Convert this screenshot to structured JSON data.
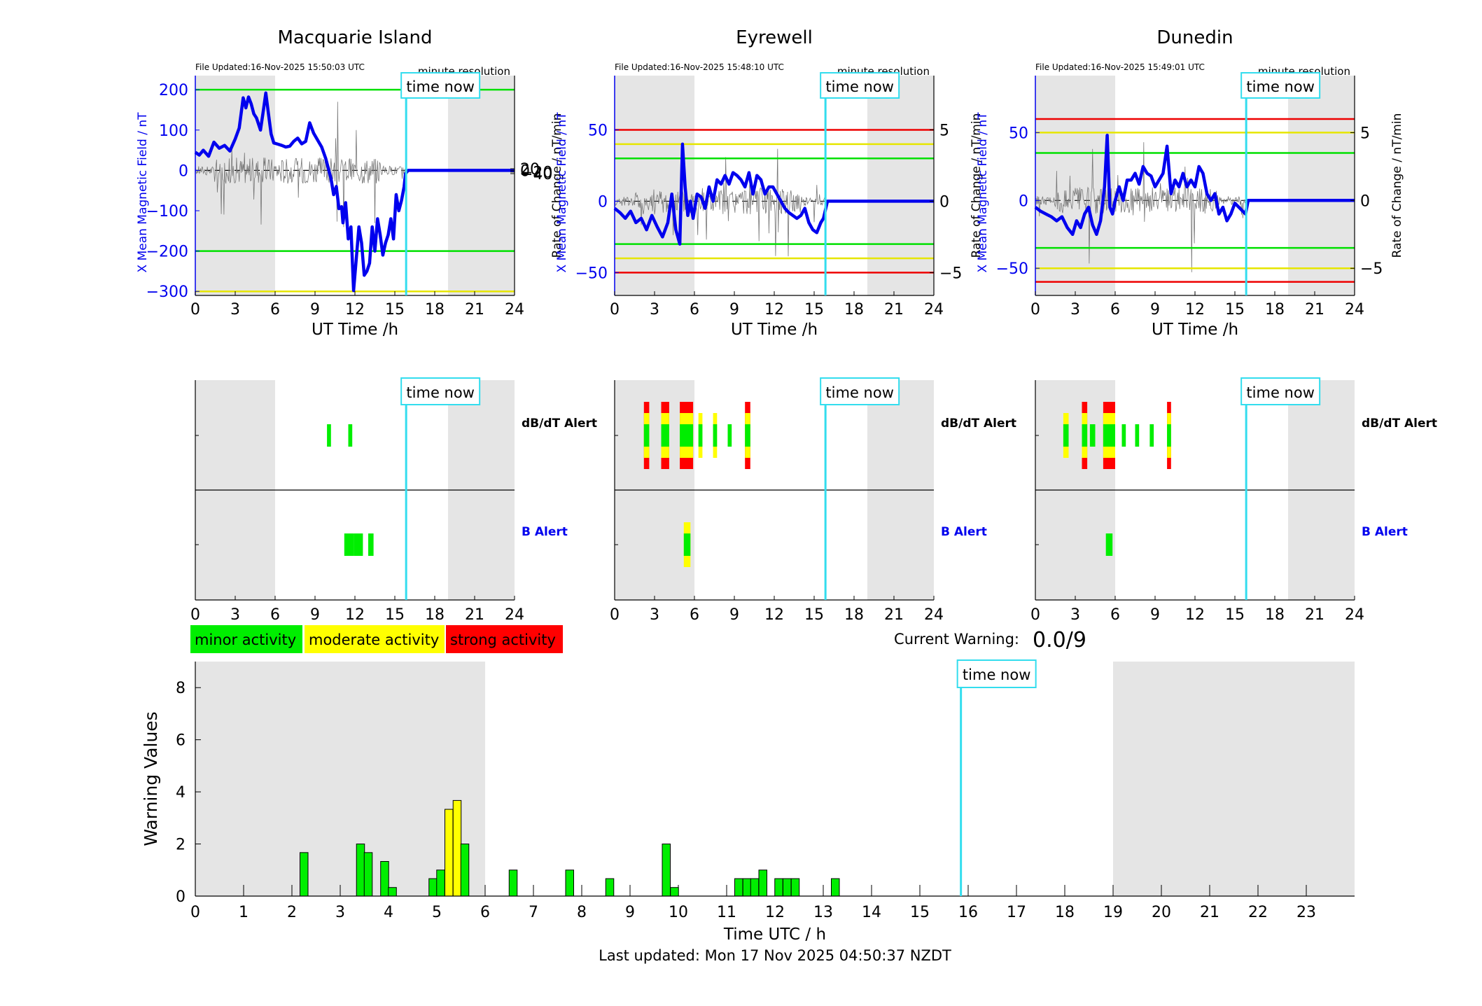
{
  "stations": [
    {
      "name": "Macquarie Island",
      "file_updated": "File Updated:16-Nov-2025 15:50:03 UTC",
      "resolution": "minute resolution",
      "left_ylabel": "X Mean Magnetic Field / nT",
      "right_ylabel": "Rate of Change / nT/min",
      "xlabel": "UT Time /h",
      "left_ylim": [
        -310,
        235
      ],
      "left_yticks": [
        -300,
        -200,
        -100,
        0,
        100,
        200
      ],
      "right_yticks": [
        -40,
        -20,
        0,
        20
      ],
      "right_scale": 5,
      "thresholds": [
        {
          "value": 200,
          "color": "#00e000"
        },
        {
          "value": -200,
          "color": "#00e000"
        },
        {
          "value": -300,
          "color": "#e6e600"
        }
      ],
      "b_series": {
        "t": [
          0,
          0.3,
          0.6,
          1,
          1.4,
          1.8,
          2.2,
          2.6,
          3,
          3.3,
          3.6,
          3.8,
          4,
          4.2,
          4.4,
          4.6,
          4.9,
          5.1,
          5.3,
          5.5,
          5.7,
          5.9,
          6.2,
          6.5,
          6.8,
          7.1,
          7.4,
          7.7,
          8,
          8.3,
          8.6,
          8.9,
          9.2,
          9.5,
          9.8,
          10,
          10.2,
          10.4,
          10.6,
          10.8,
          11,
          11.1,
          11.3,
          11.5,
          11.7,
          11.9,
          12.1,
          12.3,
          12.5,
          12.7,
          12.9,
          13.1,
          13.3,
          13.5,
          13.7,
          13.9,
          14.1,
          14.3,
          14.5,
          14.7,
          14.9,
          15.1,
          15.3,
          15.5,
          15.7,
          15.8,
          16,
          24
        ],
        "v": [
          45,
          38,
          50,
          35,
          70,
          55,
          62,
          48,
          78,
          105,
          180,
          155,
          182,
          165,
          140,
          130,
          100,
          145,
          192,
          140,
          90,
          68,
          65,
          62,
          58,
          60,
          72,
          80,
          66,
          72,
          118,
          92,
          75,
          58,
          30,
          5,
          -20,
          -60,
          -40,
          -95,
          -90,
          -130,
          -80,
          -170,
          -140,
          -298,
          -220,
          -140,
          -180,
          -260,
          -250,
          -230,
          -140,
          -200,
          -120,
          -160,
          -210,
          -180,
          -160,
          -120,
          -170,
          -60,
          -100,
          -75,
          -40,
          -8,
          0,
          0
        ]
      },
      "d_series_amp": 6,
      "dbdt_alerts": [
        {
          "start": 9.9,
          "end": 10.2,
          "level": "minor"
        },
        {
          "start": 11.5,
          "end": 11.8,
          "level": "minor"
        }
      ],
      "b_alerts": [
        {
          "start": 11.2,
          "end": 11.9,
          "level": "minor"
        },
        {
          "start": 11.9,
          "end": 12.6,
          "level": "minor"
        },
        {
          "start": 13.0,
          "end": 13.4,
          "level": "minor"
        }
      ]
    },
    {
      "name": "Eyrewell",
      "file_updated": "File Updated:16-Nov-2025 15:48:10 UTC",
      "resolution": "minute resolution",
      "left_ylabel": "X Mean Magnetic Field / nT",
      "right_ylabel": "Rate of Change / nT/min",
      "xlabel": "UT Time /h",
      "left_ylim": [
        -66,
        88
      ],
      "left_yticks": [
        -50,
        0,
        50
      ],
      "right_yticks": [
        -5,
        0,
        5
      ],
      "right_scale": 0.1,
      "thresholds": [
        {
          "value": 50,
          "color": "#ee0000"
        },
        {
          "value": 40,
          "color": "#e6e600"
        },
        {
          "value": 30,
          "color": "#00e000"
        },
        {
          "value": -30,
          "color": "#00e000"
        },
        {
          "value": -40,
          "color": "#e6e600"
        },
        {
          "value": -50,
          "color": "#ee0000"
        }
      ],
      "b_series": {
        "t": [
          0,
          0.4,
          0.8,
          1.2,
          1.6,
          2,
          2.4,
          2.8,
          3.2,
          3.6,
          4,
          4.3,
          4.6,
          4.9,
          5.1,
          5.3,
          5.5,
          5.7,
          5.9,
          6.2,
          6.5,
          6.8,
          7.1,
          7.4,
          7.7,
          8,
          8.3,
          8.6,
          8.9,
          9.2,
          9.5,
          9.8,
          10.1,
          10.4,
          10.7,
          11,
          11.3,
          11.6,
          11.9,
          12.2,
          12.5,
          12.8,
          13.1,
          13.4,
          13.7,
          14,
          14.3,
          14.6,
          14.9,
          15.2,
          15.5,
          15.7,
          15.8,
          16,
          24
        ],
        "v": [
          -5,
          -8,
          -12,
          -7,
          -15,
          -12,
          -20,
          -10,
          -18,
          -25,
          -15,
          5,
          -20,
          -30,
          40,
          10,
          -10,
          0,
          -12,
          5,
          3,
          -5,
          10,
          0,
          15,
          12,
          18,
          12,
          20,
          18,
          15,
          10,
          20,
          5,
          18,
          15,
          5,
          10,
          10,
          5,
          0,
          -5,
          -8,
          -10,
          -12,
          -10,
          -5,
          -15,
          -20,
          -22,
          -15,
          -12,
          -8,
          0,
          0
        ]
      },
      "d_series_amp": 4,
      "dbdt_alerts": [
        {
          "start": 2.2,
          "end": 2.6,
          "level": "strong"
        },
        {
          "start": 3.5,
          "end": 4.1,
          "level": "strong"
        },
        {
          "start": 4.9,
          "end": 5.9,
          "level": "strong"
        },
        {
          "start": 6.3,
          "end": 6.6,
          "level": "moderate"
        },
        {
          "start": 7.4,
          "end": 7.7,
          "level": "moderate"
        },
        {
          "start": 8.5,
          "end": 8.8,
          "level": "minor"
        },
        {
          "start": 9.8,
          "end": 10.2,
          "level": "strong"
        }
      ],
      "b_alerts": [
        {
          "start": 5.2,
          "end": 5.7,
          "level": "moderate"
        }
      ]
    },
    {
      "name": "Dunedin",
      "file_updated": "File Updated:16-Nov-2025 15:49:01 UTC",
      "resolution": "minute resolution",
      "left_ylabel": "X Mean Magnetic Field / nT",
      "right_ylabel": "Rate of Change / nT/min",
      "xlabel": "UT Time /h",
      "left_ylim": [
        -70,
        92
      ],
      "left_yticks": [
        -50,
        0,
        50
      ],
      "right_yticks": [
        -5,
        0,
        5
      ],
      "right_scale": 0.1,
      "thresholds": [
        {
          "value": 60,
          "color": "#ee0000"
        },
        {
          "value": 50,
          "color": "#e6e600"
        },
        {
          "value": 35,
          "color": "#00e000"
        },
        {
          "value": -35,
          "color": "#00e000"
        },
        {
          "value": -50,
          "color": "#e6e600"
        },
        {
          "value": -60,
          "color": "#ee0000"
        }
      ],
      "b_series": {
        "t": [
          0,
          0.4,
          0.8,
          1.2,
          1.6,
          2,
          2.4,
          2.8,
          3.1,
          3.4,
          3.7,
          4,
          4.3,
          4.6,
          4.9,
          5.2,
          5.4,
          5.6,
          5.8,
          6,
          6.3,
          6.6,
          6.9,
          7.2,
          7.5,
          7.8,
          8.1,
          8.4,
          8.7,
          9,
          9.3,
          9.6,
          9.9,
          10.2,
          10.5,
          10.8,
          11.1,
          11.4,
          11.7,
          12,
          12.3,
          12.6,
          12.9,
          13.2,
          13.5,
          13.8,
          14.1,
          14.4,
          14.7,
          15,
          15.3,
          15.6,
          15.8,
          16,
          24
        ],
        "v": [
          -5,
          -8,
          -10,
          -12,
          -15,
          -12,
          -20,
          -25,
          -15,
          -20,
          -10,
          -5,
          -18,
          -25,
          -15,
          10,
          48,
          -5,
          -10,
          0,
          10,
          0,
          15,
          15,
          20,
          12,
          25,
          20,
          18,
          10,
          15,
          20,
          40,
          5,
          15,
          10,
          20,
          10,
          15,
          10,
          25,
          20,
          5,
          0,
          5,
          -10,
          -5,
          -15,
          -10,
          -2,
          -5,
          -8,
          -10,
          0,
          0
        ]
      },
      "d_series_amp": 4,
      "dbdt_alerts": [
        {
          "start": 2.1,
          "end": 2.5,
          "level": "moderate"
        },
        {
          "start": 3.5,
          "end": 3.9,
          "level": "strong"
        },
        {
          "start": 4.1,
          "end": 4.5,
          "level": "minor"
        },
        {
          "start": 5.1,
          "end": 6.0,
          "level": "strong"
        },
        {
          "start": 6.5,
          "end": 6.8,
          "level": "minor"
        },
        {
          "start": 7.5,
          "end": 7.8,
          "level": "minor"
        },
        {
          "start": 8.6,
          "end": 8.9,
          "level": "minor"
        },
        {
          "start": 9.9,
          "end": 10.2,
          "level": "strong"
        }
      ],
      "b_alerts": [
        {
          "start": 5.3,
          "end": 5.8,
          "level": "minor"
        }
      ]
    }
  ],
  "alert_labels": {
    "dbdt": "dB/dT Alert",
    "b": "B Alert"
  },
  "time_now_label": "time now",
  "time_now_hour": 15.85,
  "night_shading": [
    [
      0,
      6
    ],
    [
      19,
      24
    ]
  ],
  "x_ticks_station": [
    0,
    3,
    6,
    9,
    12,
    15,
    18,
    21,
    24
  ],
  "legend": [
    {
      "label": "minor activity",
      "color": "#00ee00"
    },
    {
      "label": "moderate activity",
      "color": "#ffff00"
    },
    {
      "label": "strong activity",
      "color": "#ff0000"
    }
  ],
  "level_colors": {
    "minor": "#00ee00",
    "moderate": "#ffff00",
    "strong": "#ff0000"
  },
  "current_warning": {
    "label": "Current Warning:",
    "value": "0.0/9"
  },
  "chart_data": {
    "type": "bar",
    "title": "",
    "xlabel": "Time UTC / h",
    "ylabel": "Warning Values",
    "xlim": [
      0,
      24
    ],
    "ylim": [
      0,
      9
    ],
    "x_ticks": [
      0,
      1,
      2,
      3,
      4,
      5,
      6,
      7,
      8,
      9,
      10,
      11,
      12,
      13,
      14,
      15,
      16,
      17,
      18,
      19,
      20,
      21,
      22,
      23
    ],
    "y_ticks": [
      0,
      2,
      4,
      6,
      8
    ],
    "bars": [
      {
        "x": 2.25,
        "value": 1.67,
        "level": "minor"
      },
      {
        "x": 3.42,
        "value": 2.0,
        "level": "minor"
      },
      {
        "x": 3.58,
        "value": 1.67,
        "level": "minor"
      },
      {
        "x": 3.92,
        "value": 1.33,
        "level": "minor"
      },
      {
        "x": 4.08,
        "value": 0.33,
        "level": "minor"
      },
      {
        "x": 4.92,
        "value": 0.67,
        "level": "minor"
      },
      {
        "x": 5.08,
        "value": 1.0,
        "level": "minor"
      },
      {
        "x": 5.25,
        "value": 3.33,
        "level": "moderate"
      },
      {
        "x": 5.42,
        "value": 3.67,
        "level": "moderate"
      },
      {
        "x": 5.58,
        "value": 2.0,
        "level": "minor"
      },
      {
        "x": 6.58,
        "value": 1.0,
        "level": "minor"
      },
      {
        "x": 7.75,
        "value": 1.0,
        "level": "minor"
      },
      {
        "x": 8.58,
        "value": 0.67,
        "level": "minor"
      },
      {
        "x": 9.75,
        "value": 2.0,
        "level": "minor"
      },
      {
        "x": 9.92,
        "value": 0.33,
        "level": "minor"
      },
      {
        "x": 11.25,
        "value": 0.67,
        "level": "minor"
      },
      {
        "x": 11.42,
        "value": 0.67,
        "level": "minor"
      },
      {
        "x": 11.58,
        "value": 0.67,
        "level": "minor"
      },
      {
        "x": 11.75,
        "value": 1.0,
        "level": "minor"
      },
      {
        "x": 12.08,
        "value": 0.67,
        "level": "minor"
      },
      {
        "x": 12.25,
        "value": 0.67,
        "level": "minor"
      },
      {
        "x": 12.42,
        "value": 0.67,
        "level": "minor"
      },
      {
        "x": 13.25,
        "value": 0.67,
        "level": "minor"
      }
    ]
  },
  "last_updated": "Last updated: Mon 17 Nov 2025 04:50:37 NZDT"
}
